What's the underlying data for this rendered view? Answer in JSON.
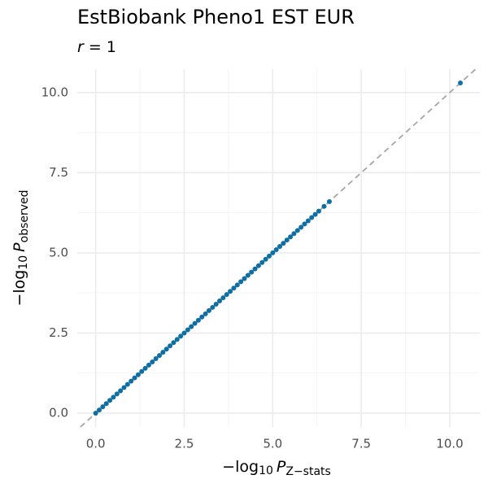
{
  "chart_data": {
    "type": "scatter",
    "title": "EstBiobank Pheno1 EST EUR",
    "subtitle": [
      "r",
      "= 1"
    ],
    "xlabel": [
      "−log",
      "10",
      "P",
      "Z−stats"
    ],
    "ylabel": [
      "−log",
      "10",
      "P",
      "observed"
    ],
    "color": "#0f6fa3",
    "grid": true,
    "identity_line": true,
    "xlim": [
      -0.52,
      10.85
    ],
    "ylim": [
      -0.43,
      10.73
    ],
    "xticks": [
      {
        "value": 0,
        "label": "0.0"
      },
      2.5,
      {
        "value": 5,
        "label": "5.0"
      },
      7.5,
      {
        "value": 10,
        "label": "10.0"
      }
    ],
    "yticks": [
      {
        "value": 0,
        "label": "0.0"
      },
      2.5,
      {
        "value": 5,
        "label": "5.0"
      },
      7.5,
      {
        "value": 10,
        "label": "10.0"
      }
    ],
    "xminor": [
      1.25,
      3.75,
      6.25,
      8.75
    ],
    "yminor": [
      1.25,
      3.75,
      6.25,
      8.75
    ],
    "x": [
      0,
      0.1,
      0.2,
      0.3,
      0.4,
      0.5,
      0.6,
      0.7,
      0.8,
      0.9,
      1,
      1.1,
      1.2,
      1.3,
      1.4,
      1.5,
      1.6,
      1.7,
      1.8,
      1.9,
      2,
      2.1,
      2.2,
      2.3,
      2.4,
      2.5,
      2.6,
      2.7,
      2.8,
      2.9,
      3,
      3.1,
      3.2,
      3.3,
      3.4,
      3.5,
      3.6,
      3.7,
      3.8,
      3.9,
      4,
      4.1,
      4.2,
      4.3,
      4.4,
      4.5,
      4.6,
      4.7,
      4.8,
      4.9,
      5,
      5.1,
      5.2,
      5.3,
      5.4,
      5.5,
      5.6,
      5.7,
      5.8,
      5.9,
      6,
      6.1,
      6.2,
      6.3,
      6.45,
      6.6,
      10.3
    ],
    "y": [
      0,
      0.1,
      0.2,
      0.3,
      0.4,
      0.5,
      0.6,
      0.7,
      0.8,
      0.9,
      1,
      1.1,
      1.2,
      1.3,
      1.4,
      1.5,
      1.6,
      1.7,
      1.8,
      1.9,
      2,
      2.1,
      2.2,
      2.3,
      2.4,
      2.5,
      2.6,
      2.7,
      2.8,
      2.9,
      3,
      3.1,
      3.2,
      3.3,
      3.4,
      3.5,
      3.6,
      3.7,
      3.8,
      3.9,
      4,
      4.1,
      4.2,
      4.3,
      4.4,
      4.5,
      4.6,
      4.7,
      4.8,
      4.9,
      5,
      5.1,
      5.2,
      5.3,
      5.4,
      5.5,
      5.6,
      5.7,
      5.8,
      5.9,
      6,
      6.1,
      6.2,
      6.3,
      6.45,
      6.6,
      10.3
    ]
  }
}
